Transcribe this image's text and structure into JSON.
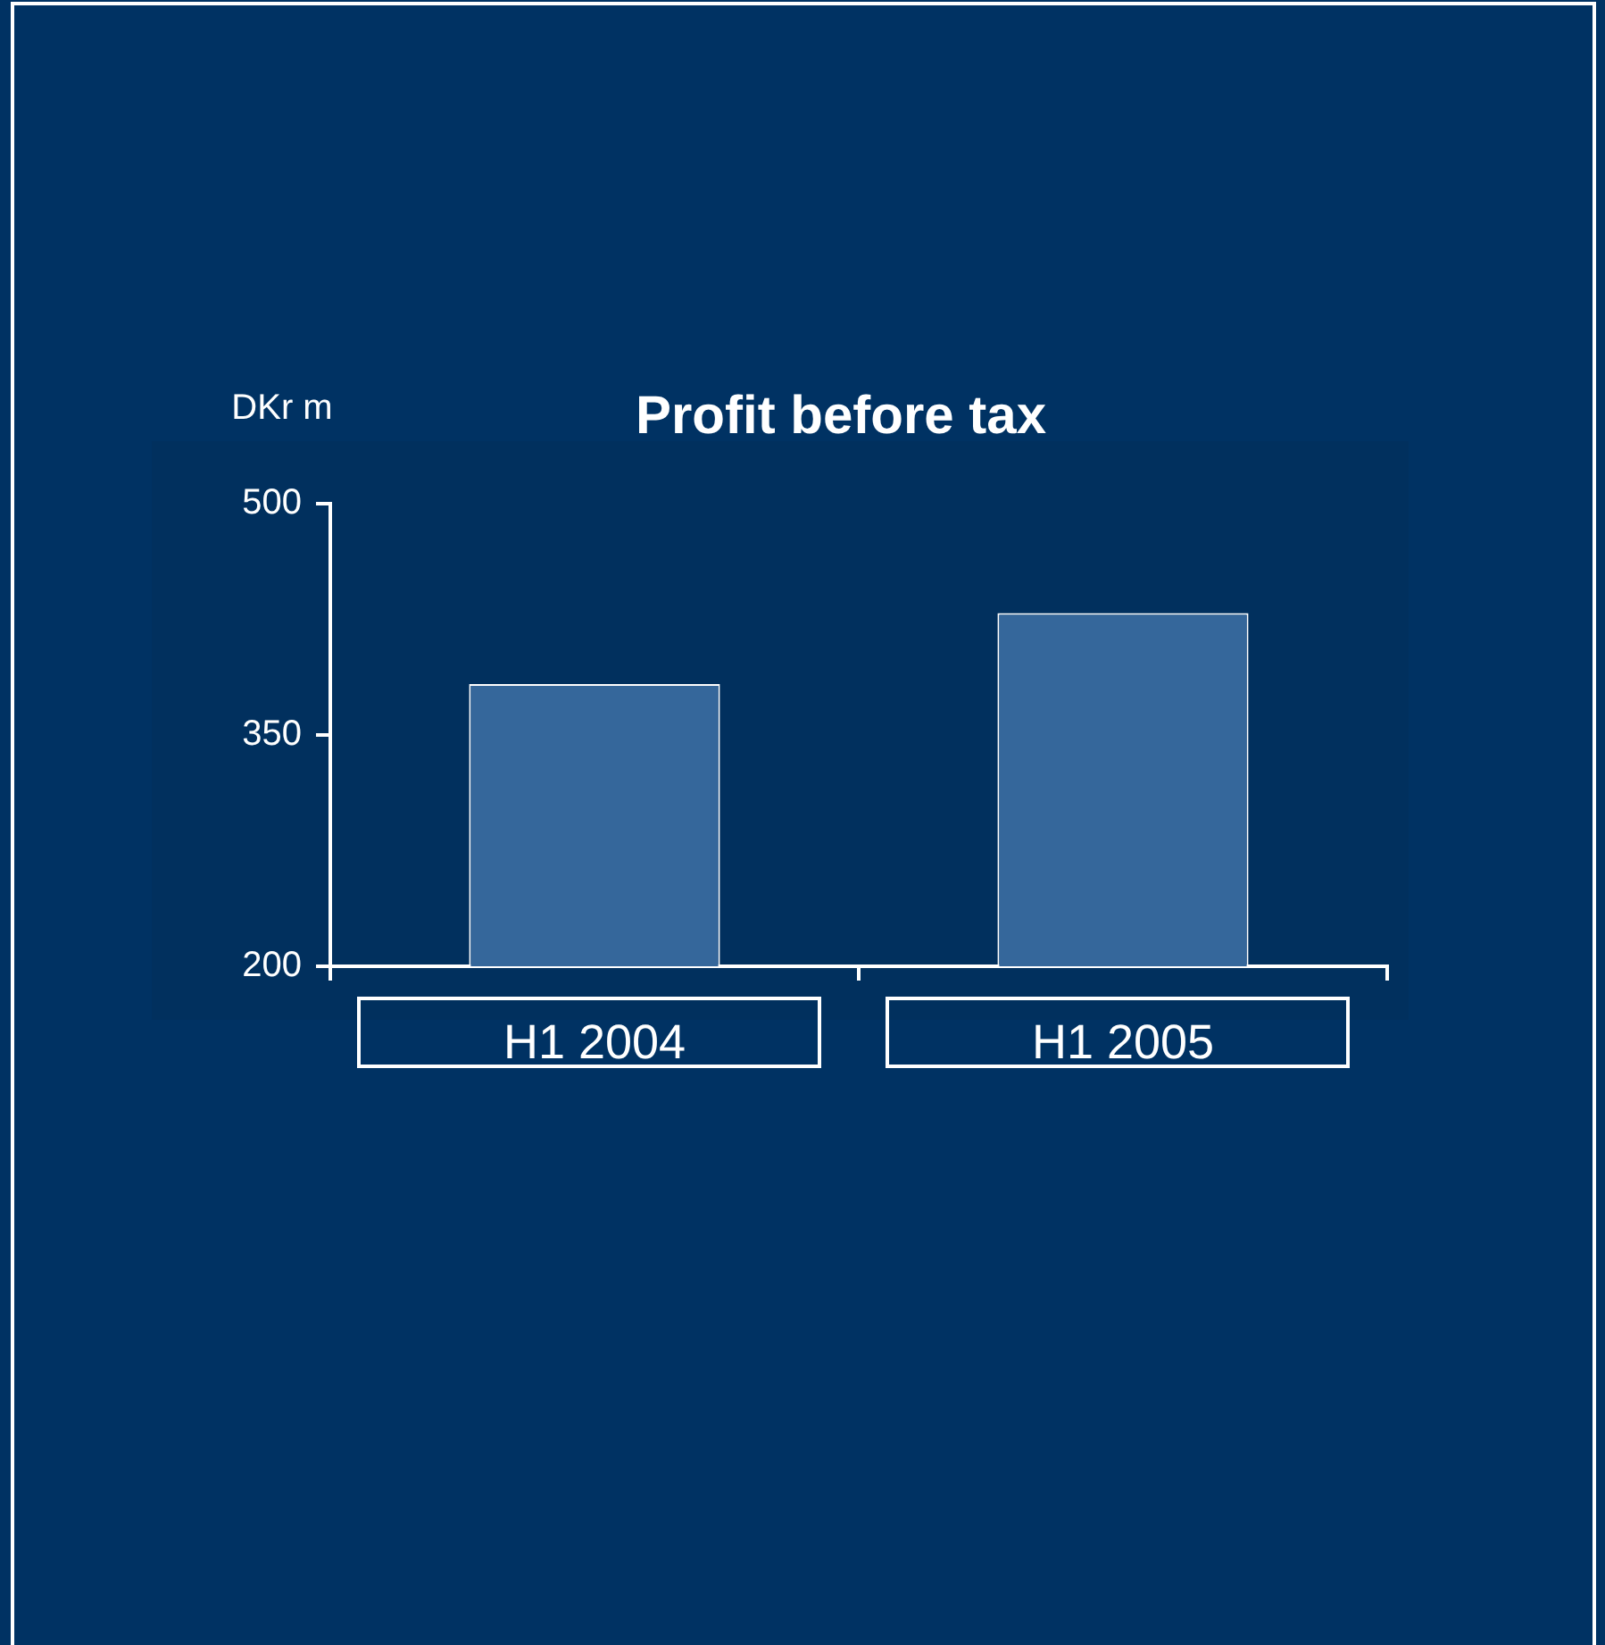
{
  "chart_data": {
    "type": "bar",
    "title": "Profit before tax",
    "ylabel": "DKr m",
    "categories": [
      "H1 2004",
      "H1 2005"
    ],
    "values": [
      383,
      429
    ],
    "color": "#35679b",
    "ylim": [
      200,
      500
    ],
    "yticks": [
      200,
      350,
      500
    ],
    "grid": false,
    "legend": false
  }
}
